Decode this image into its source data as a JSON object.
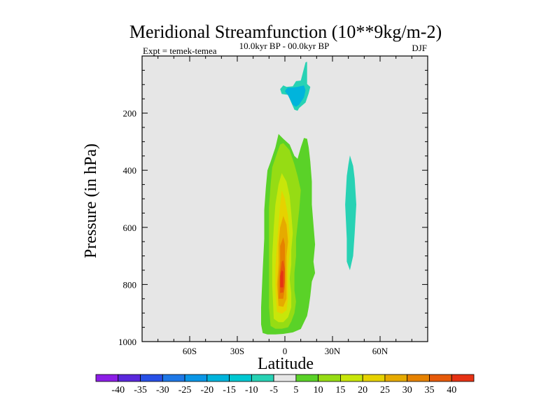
{
  "chart_data": {
    "type": "heatmap",
    "title": "Meridional Streamfunction (10**9kg/m-2)",
    "subtitle_left": "Expt = temek-temea",
    "subtitle_center": "10.0kyr BP - 00.0kyr BP",
    "subtitle_right": "DJF",
    "xlabel": "Latitude",
    "ylabel": "Pressure (in hPa)",
    "xlim": [
      -90,
      90
    ],
    "ylim": [
      1000,
      0
    ],
    "x_ticks": [
      {
        "value": -60,
        "label": "60S"
      },
      {
        "value": -30,
        "label": "30S"
      },
      {
        "value": 0,
        "label": "0"
      },
      {
        "value": 30,
        "label": "30N"
      },
      {
        "value": 60,
        "label": "60N"
      }
    ],
    "y_ticks": [
      {
        "value": 200,
        "label": "200"
      },
      {
        "value": 400,
        "label": "400"
      },
      {
        "value": 600,
        "label": "600"
      },
      {
        "value": 800,
        "label": "800"
      },
      {
        "value": 1000,
        "label": "1000"
      }
    ],
    "colorbar": {
      "labels": [
        "-40",
        "-35",
        "-30",
        "-25",
        "-20",
        "-15",
        "-10",
        "-5",
        "5",
        "10",
        "15",
        "20",
        "25",
        "30",
        "35",
        "40"
      ],
      "colors": [
        "#8c1ee6",
        "#5a28dc",
        "#2850e6",
        "#1e78e6",
        "#0a96e6",
        "#00b4dc",
        "#00c8d2",
        "#28d2b4",
        "#e6e6e6",
        "#5ad228",
        "#96dc14",
        "#c8e60a",
        "#e6d200",
        "#e6aa00",
        "#e68200",
        "#e65a0a",
        "#e63214"
      ]
    },
    "contours": [
      {
        "level": -5,
        "color": "#28d2b4",
        "points": [
          [
            -3,
            116
          ],
          [
            -2,
            133
          ],
          [
            2,
            136
          ],
          [
            4,
            163
          ],
          [
            6,
            188
          ],
          [
            8,
            192
          ],
          [
            9,
            182
          ],
          [
            13,
            163
          ],
          [
            15,
            131
          ],
          [
            16,
            108
          ],
          [
            14,
            98
          ],
          [
            14,
            20
          ],
          [
            13,
            22
          ],
          [
            10,
            86
          ],
          [
            7,
            88
          ],
          [
            5,
            106
          ],
          [
            1,
            108
          ],
          [
            -1,
            103
          ]
        ]
      },
      {
        "level": -10,
        "color": "#00b4dc",
        "points": [
          [
            0,
            123
          ],
          [
            2,
            138
          ],
          [
            5,
            171
          ],
          [
            7,
            178
          ],
          [
            9,
            170
          ],
          [
            12,
            145
          ],
          [
            13,
            120
          ],
          [
            12,
            103
          ],
          [
            8,
            108
          ],
          [
            4,
            111
          ],
          [
            2,
            111
          ],
          [
            1,
            115
          ]
        ]
      },
      {
        "level": -5,
        "color": "#28d2b4",
        "points": [
          [
            41,
            348
          ],
          [
            43,
            385
          ],
          [
            44,
            430
          ],
          [
            45,
            520
          ],
          [
            44,
            620
          ],
          [
            43,
            700
          ],
          [
            41,
            750
          ],
          [
            39,
            720
          ],
          [
            39,
            640
          ],
          [
            38,
            520
          ],
          [
            39,
            420
          ],
          [
            40,
            380
          ]
        ]
      },
      {
        "level": 5,
        "color": "#5ad228",
        "points": [
          [
            -14,
            970
          ],
          [
            -11,
            975
          ],
          [
            -6,
            975
          ],
          [
            -1,
            973
          ],
          [
            5,
            968
          ],
          [
            10,
            956
          ],
          [
            14,
            910
          ],
          [
            15,
            880
          ],
          [
            16,
            840
          ],
          [
            17,
            790
          ],
          [
            19,
            760
          ],
          [
            18,
            720
          ],
          [
            19,
            660
          ],
          [
            18,
            590
          ],
          [
            17,
            520
          ],
          [
            17,
            440
          ],
          [
            16,
            370
          ],
          [
            15,
            320
          ],
          [
            14,
            290
          ],
          [
            12,
            287
          ],
          [
            10,
            320
          ],
          [
            8,
            360
          ],
          [
            6,
            350
          ],
          [
            3,
            310
          ],
          [
            -1,
            290
          ],
          [
            -4,
            273
          ],
          [
            -6,
            320
          ],
          [
            -9,
            370
          ],
          [
            -11,
            400
          ],
          [
            -12,
            460
          ],
          [
            -13,
            540
          ],
          [
            -13,
            640
          ],
          [
            -14,
            750
          ],
          [
            -15,
            880
          ],
          [
            -15,
            940
          ]
        ]
      },
      {
        "level": 10,
        "color": "#96dc14",
        "points": [
          [
            -9,
            945
          ],
          [
            -6,
            955
          ],
          [
            -2,
            955
          ],
          [
            2,
            950
          ],
          [
            4,
            930
          ],
          [
            6,
            900
          ],
          [
            7,
            860
          ],
          [
            6,
            820
          ],
          [
            6,
            760
          ],
          [
            7,
            700
          ],
          [
            7,
            640
          ],
          [
            8,
            590
          ],
          [
            9,
            540
          ],
          [
            10,
            470
          ],
          [
            8,
            420
          ],
          [
            6,
            380
          ],
          [
            3,
            330
          ],
          [
            -1,
            305
          ],
          [
            -3,
            310
          ],
          [
            -5,
            340
          ],
          [
            -8,
            390
          ],
          [
            -9,
            450
          ],
          [
            -10,
            530
          ],
          [
            -10,
            640
          ],
          [
            -10,
            760
          ],
          [
            -10,
            880
          ]
        ]
      },
      {
        "level": 15,
        "color": "#c8e60a",
        "points": [
          [
            -7,
            920
          ],
          [
            -4,
            932
          ],
          [
            -1,
            932
          ],
          [
            2,
            915
          ],
          [
            4,
            880
          ],
          [
            4,
            830
          ],
          [
            3,
            780
          ],
          [
            4,
            730
          ],
          [
            4,
            680
          ],
          [
            5,
            620
          ],
          [
            4,
            550
          ],
          [
            3,
            490
          ],
          [
            1,
            440
          ],
          [
            -2,
            410
          ],
          [
            -4,
            450
          ],
          [
            -6,
            520
          ],
          [
            -7,
            600
          ],
          [
            -8,
            700
          ],
          [
            -8,
            800
          ]
        ]
      },
      {
        "level": 20,
        "color": "#e6d200",
        "points": [
          [
            -5,
            895
          ],
          [
            -2,
            903
          ],
          [
            1,
            890
          ],
          [
            2,
            850
          ],
          [
            2,
            800
          ],
          [
            2,
            740
          ],
          [
            3,
            690
          ],
          [
            3,
            630
          ],
          [
            2,
            560
          ],
          [
            0,
            500
          ],
          [
            -2,
            470
          ],
          [
            -3,
            520
          ],
          [
            -4,
            590
          ],
          [
            -5,
            660
          ],
          [
            -6,
            740
          ],
          [
            -6,
            820
          ]
        ]
      },
      {
        "level": 25,
        "color": "#e6aa00",
        "points": [
          [
            -4,
            875
          ],
          [
            -1,
            878
          ],
          [
            1,
            850
          ],
          [
            1,
            800
          ],
          [
            1,
            750
          ],
          [
            1,
            700
          ],
          [
            2,
            650
          ],
          [
            1,
            590
          ],
          [
            -1,
            560
          ],
          [
            -3,
            600
          ],
          [
            -4,
            660
          ],
          [
            -4,
            730
          ],
          [
            -5,
            800
          ]
        ]
      },
      {
        "level": 30,
        "color": "#e68200",
        "points": [
          [
            -4,
            850
          ],
          [
            -1,
            850
          ],
          [
            0,
            810
          ],
          [
            0,
            760
          ],
          [
            0,
            710
          ],
          [
            0,
            660
          ],
          [
            -1,
            635
          ],
          [
            -3,
            665
          ],
          [
            -3,
            720
          ],
          [
            -4,
            790
          ]
        ]
      },
      {
        "level": 35,
        "color": "#e65a0a",
        "points": [
          [
            -3,
            830
          ],
          [
            -1,
            828
          ],
          [
            0,
            790
          ],
          [
            0,
            745
          ],
          [
            -1,
            715
          ],
          [
            -2,
            720
          ],
          [
            -3,
            760
          ],
          [
            -3,
            800
          ]
        ]
      },
      {
        "level": 40,
        "color": "#e63214",
        "points": [
          [
            -3,
            810
          ],
          [
            -1,
            810
          ],
          [
            -1,
            780
          ],
          [
            -1,
            755
          ],
          [
            -2,
            750
          ],
          [
            -3,
            770
          ]
        ]
      }
    ]
  }
}
